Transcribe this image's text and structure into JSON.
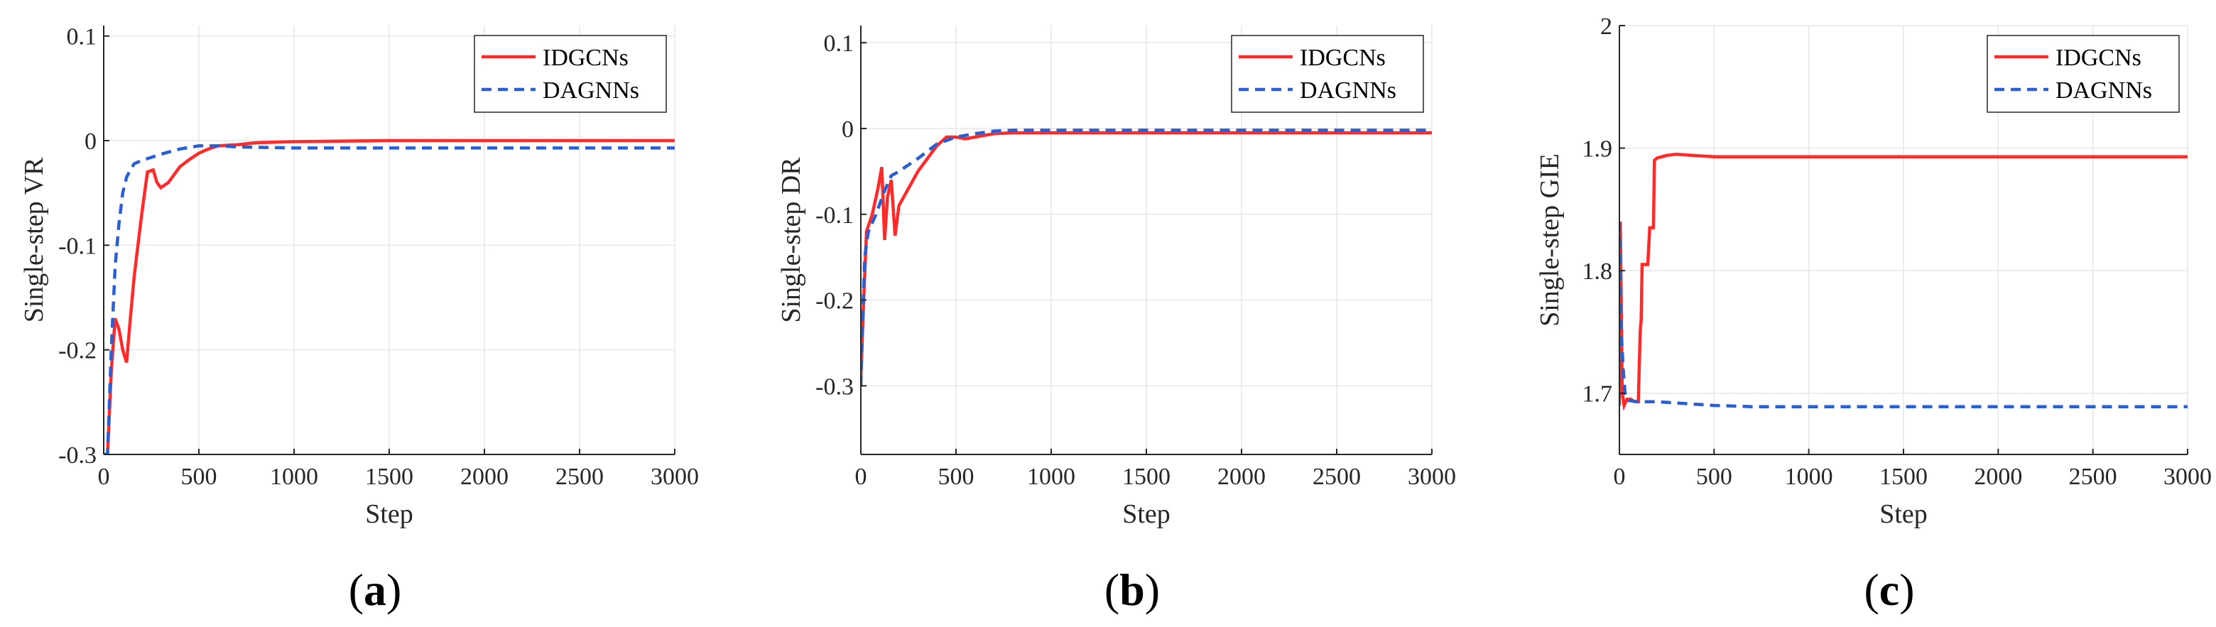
{
  "chart_data": [
    {
      "type": "line",
      "panel_label": "a",
      "xlabel": "Step",
      "ylabel": "Single-step VR",
      "xlim": [
        0,
        3000
      ],
      "ylim": [
        -0.3,
        0.11
      ],
      "xticks": [
        0,
        500,
        1000,
        1500,
        2000,
        2500,
        3000
      ],
      "yticks": [
        -0.3,
        -0.2,
        -0.1,
        0,
        0.1
      ],
      "ytick_labels": [
        "-0.3",
        "-0.2",
        "-0.1",
        "0",
        "0.1"
      ],
      "legend_position": "top-right",
      "series": [
        {
          "name": "IDGCNs",
          "color": "#ff2a2a",
          "style": "solid",
          "x": [
            0,
            20,
            40,
            60,
            80,
            100,
            120,
            140,
            160,
            180,
            200,
            230,
            260,
            280,
            300,
            340,
            400,
            450,
            500,
            550,
            600,
            700,
            800,
            1000,
            1500,
            2000,
            3000
          ],
          "y": [
            -0.3,
            -0.3,
            -0.22,
            -0.17,
            -0.18,
            -0.2,
            -0.212,
            -0.17,
            -0.13,
            -0.1,
            -0.07,
            -0.03,
            -0.028,
            -0.04,
            -0.045,
            -0.04,
            -0.025,
            -0.018,
            -0.012,
            -0.008,
            -0.005,
            -0.004,
            -0.002,
            -0.001,
            0,
            0,
            0
          ]
        },
        {
          "name": "DAGNNs",
          "color": "#2a5fd4",
          "style": "dashed",
          "x": [
            0,
            20,
            40,
            60,
            80,
            100,
            120,
            140,
            160,
            200,
            250,
            300,
            400,
            500,
            600,
            700,
            1000,
            2000,
            3000
          ],
          "y": [
            -0.3,
            -0.3,
            -0.2,
            -0.12,
            -0.08,
            -0.05,
            -0.035,
            -0.028,
            -0.022,
            -0.019,
            -0.016,
            -0.013,
            -0.008,
            -0.005,
            -0.005,
            -0.006,
            -0.007,
            -0.007,
            -0.007
          ]
        }
      ]
    },
    {
      "type": "line",
      "panel_label": "b",
      "xlabel": "Step",
      "ylabel": "Single-step DR",
      "xlim": [
        0,
        3000
      ],
      "ylim": [
        -0.38,
        0.12
      ],
      "xticks": [
        0,
        500,
        1000,
        1500,
        2000,
        2500,
        3000
      ],
      "yticks": [
        -0.3,
        -0.2,
        -0.1,
        0,
        0.1
      ],
      "ytick_labels": [
        "-0.3",
        "-0.2",
        "-0.1",
        "0",
        "0.1"
      ],
      "legend_position": "top-right",
      "series": [
        {
          "name": "IDGCNs",
          "color": "#ff2a2a",
          "style": "solid",
          "x": [
            0,
            15,
            30,
            60,
            90,
            110,
            125,
            140,
            160,
            180,
            200,
            250,
            300,
            350,
            400,
            450,
            500,
            550,
            600,
            700,
            800,
            1000,
            2000,
            3000
          ],
          "y": [
            -0.29,
            -0.2,
            -0.12,
            -0.1,
            -0.07,
            -0.045,
            -0.13,
            -0.08,
            -0.06,
            -0.125,
            -0.09,
            -0.07,
            -0.05,
            -0.035,
            -0.02,
            -0.01,
            -0.01,
            -0.012,
            -0.01,
            -0.006,
            -0.005,
            -0.005,
            -0.005,
            -0.005
          ]
        },
        {
          "name": "DAGNNs",
          "color": "#2a5fd4",
          "style": "dashed",
          "x": [
            0,
            20,
            40,
            80,
            120,
            160,
            200,
            300,
            400,
            500,
            600,
            700,
            800,
            1000,
            2000,
            3000
          ],
          "y": [
            -0.3,
            -0.15,
            -0.12,
            -0.1,
            -0.075,
            -0.055,
            -0.05,
            -0.035,
            -0.018,
            -0.01,
            -0.006,
            -0.003,
            -0.002,
            -0.002,
            -0.002,
            -0.002
          ]
        }
      ]
    },
    {
      "type": "line",
      "panel_label": "c",
      "xlabel": "Step",
      "ylabel": "Single-step GIE",
      "xlim": [
        0,
        3000
      ],
      "ylim": [
        1.65,
        2.0
      ],
      "xticks": [
        0,
        500,
        1000,
        1500,
        2000,
        2500,
        3000
      ],
      "yticks": [
        1.7,
        1.8,
        1.9,
        2.0
      ],
      "ytick_labels": [
        "1.7",
        "1.8",
        "1.9",
        "2"
      ],
      "legend_position": "top-right",
      "series": [
        {
          "name": "IDGCNs",
          "color": "#ff2a2a",
          "style": "solid",
          "x": [
            0,
            5,
            15,
            25,
            40,
            60,
            80,
            100,
            110,
            115,
            120,
            125,
            150,
            160,
            165,
            180,
            185,
            200,
            250,
            300,
            500,
            1000,
            2000,
            3000
          ],
          "y": [
            1.69,
            1.84,
            1.7,
            1.69,
            1.695,
            1.695,
            1.693,
            1.693,
            1.75,
            1.76,
            1.805,
            1.805,
            1.805,
            1.835,
            1.835,
            1.835,
            1.89,
            1.892,
            1.894,
            1.895,
            1.893,
            1.893,
            1.893,
            1.893
          ]
        },
        {
          "name": "DAGNNs",
          "color": "#2a5fd4",
          "style": "dashed",
          "x": [
            0,
            5,
            10,
            20,
            30,
            50,
            100,
            200,
            300,
            400,
            500,
            700,
            1000,
            1500,
            2000,
            3000
          ],
          "y": [
            1.84,
            1.8,
            1.75,
            1.72,
            1.7,
            1.694,
            1.693,
            1.693,
            1.692,
            1.691,
            1.69,
            1.689,
            1.689,
            1.689,
            1.689,
            1.689
          ]
        }
      ]
    }
  ]
}
